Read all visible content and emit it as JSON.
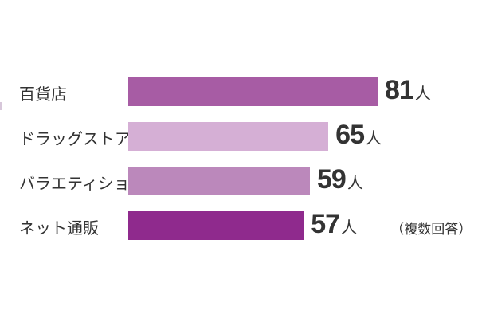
{
  "chart_data": {
    "type": "bar",
    "orientation": "horizontal",
    "categories": [
      "百貨店",
      "ドラッグストア",
      "バラエティショップ",
      "ネット通販"
    ],
    "values": [
      81,
      65,
      59,
      57
    ],
    "value_labels": [
      "81",
      "65",
      "59",
      "57"
    ],
    "unit": "人",
    "note": "（複数回答）",
    "colors": [
      "#a75ca4",
      "#d5afd5",
      "#bb88bb",
      "#8f2a8d"
    ],
    "title": "",
    "xlabel": "",
    "ylabel": "",
    "xlim": [
      0,
      81
    ],
    "grid": false
  }
}
